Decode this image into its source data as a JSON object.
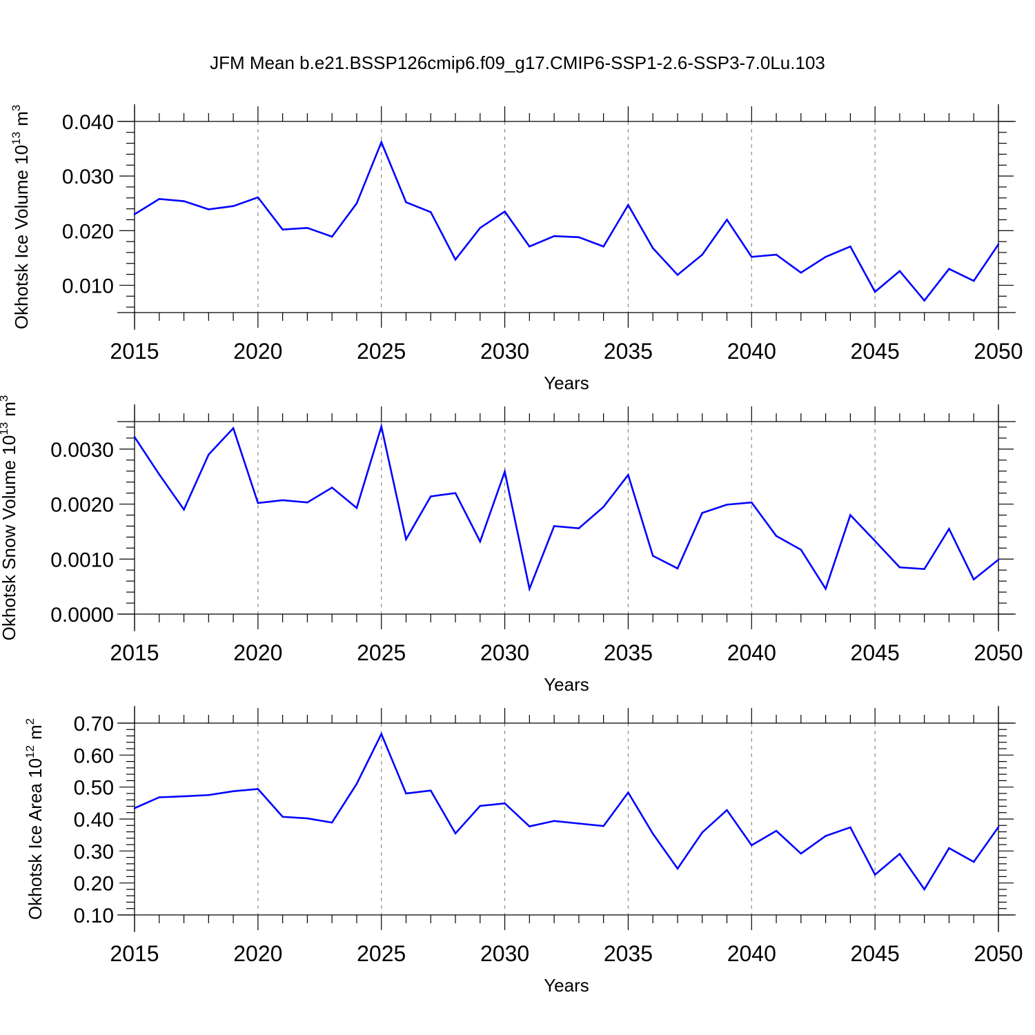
{
  "figure": {
    "title": "JFM Mean b.e21.BSSP126cmip6.f09_g17.CMIP6-SSP1-2.6-SSP3-7.0Lu.103",
    "line_color": "#0000ff",
    "grid_color": "#888888"
  },
  "chart_data": [
    {
      "type": "line",
      "title": "",
      "xlabel": "Years",
      "ylabel": "Okhotsk Ice Volume 10",
      "ylabel_exponent": "13",
      "ylabel_unit": "m",
      "ylabel_unit_exponent": "3",
      "xlim": [
        2015,
        2050
      ],
      "ylim": [
        0.005,
        0.04
      ],
      "xticks": [
        2015,
        2020,
        2025,
        2030,
        2035,
        2040,
        2045,
        2050
      ],
      "xtick_labels": [
        "2015",
        "2020",
        "2025",
        "2030",
        "2035",
        "2040",
        "2045",
        "2050"
      ],
      "yticks": [
        0.01,
        0.02,
        0.03,
        0.04
      ],
      "ytick_labels": [
        "0.010",
        "0.020",
        "0.030",
        "0.040"
      ],
      "grid": "vertical dashed at major x ticks",
      "x": [
        2015,
        2016,
        2017,
        2018,
        2019,
        2020,
        2021,
        2022,
        2023,
        2024,
        2025,
        2026,
        2027,
        2028,
        2029,
        2030,
        2031,
        2032,
        2033,
        2034,
        2035,
        2036,
        2037,
        2038,
        2039,
        2040,
        2041,
        2042,
        2043,
        2044,
        2045,
        2046,
        2047,
        2048,
        2049,
        2050
      ],
      "series": [
        {
          "values": [
            0.023,
            0.0258,
            0.0254,
            0.0239,
            0.0245,
            0.0261,
            0.0202,
            0.0205,
            0.0189,
            0.025,
            0.0362,
            0.0252,
            0.0234,
            0.0147,
            0.0205,
            0.0235,
            0.0171,
            0.019,
            0.0188,
            0.0171,
            0.0247,
            0.0168,
            0.0119,
            0.0156,
            0.022,
            0.0152,
            0.0156,
            0.0123,
            0.0152,
            0.0171,
            0.0088,
            0.0126,
            0.0072,
            0.013,
            0.0108,
            0.0175
          ]
        }
      ]
    },
    {
      "type": "line",
      "title": "",
      "xlabel": "Years",
      "ylabel": "Okhotsk Snow Volume 10",
      "ylabel_exponent": "13",
      "ylabel_unit": "m",
      "ylabel_unit_exponent": "3",
      "xlim": [
        2015,
        2050
      ],
      "ylim": [
        0.0,
        0.0035
      ],
      "xticks": [
        2015,
        2020,
        2025,
        2030,
        2035,
        2040,
        2045,
        2050
      ],
      "xtick_labels": [
        "2015",
        "2020",
        "2025",
        "2030",
        "2035",
        "2040",
        "2045",
        "2050"
      ],
      "yticks": [
        0.0,
        0.001,
        0.002,
        0.003
      ],
      "ytick_labels": [
        "0.0000",
        "0.0010",
        "0.0020",
        "0.0030"
      ],
      "grid": "vertical dashed at major x ticks",
      "x": [
        2015,
        2016,
        2017,
        2018,
        2019,
        2020,
        2021,
        2022,
        2023,
        2024,
        2025,
        2026,
        2027,
        2028,
        2029,
        2030,
        2031,
        2032,
        2033,
        2034,
        2035,
        2036,
        2037,
        2038,
        2039,
        2040,
        2041,
        2042,
        2043,
        2044,
        2045,
        2046,
        2047,
        2048,
        2049,
        2050
      ],
      "series": [
        {
          "values": [
            0.00322,
            0.00254,
            0.0019,
            0.0029,
            0.00338,
            0.00202,
            0.00207,
            0.00203,
            0.0023,
            0.00193,
            0.00341,
            0.00136,
            0.00214,
            0.0022,
            0.00132,
            0.00259,
            0.00046,
            0.0016,
            0.00156,
            0.00195,
            0.00253,
            0.00106,
            0.00083,
            0.00184,
            0.00199,
            0.00203,
            0.00142,
            0.00117,
            0.00046,
            0.0018,
            0.00133,
            0.00085,
            0.00082,
            0.00155,
            0.00063,
            0.00099
          ]
        }
      ]
    },
    {
      "type": "line",
      "title": "",
      "xlabel": "Years",
      "ylabel": "Okhotsk Ice Area 10",
      "ylabel_exponent": "12",
      "ylabel_unit": "m",
      "ylabel_unit_exponent": "2",
      "xlim": [
        2015,
        2050
      ],
      "ylim": [
        0.1,
        0.7
      ],
      "xticks": [
        2015,
        2020,
        2025,
        2030,
        2035,
        2040,
        2045,
        2050
      ],
      "xtick_labels": [
        "2015",
        "2020",
        "2025",
        "2030",
        "2035",
        "2040",
        "2045",
        "2050"
      ],
      "yticks": [
        0.1,
        0.2,
        0.3,
        0.4,
        0.5,
        0.6,
        0.7
      ],
      "ytick_labels": [
        "0.10",
        "0.20",
        "0.30",
        "0.40",
        "0.50",
        "0.60",
        "0.70"
      ],
      "grid": "vertical dashed at major x ticks",
      "x": [
        2015,
        2016,
        2017,
        2018,
        2019,
        2020,
        2021,
        2022,
        2023,
        2024,
        2025,
        2026,
        2027,
        2028,
        2029,
        2030,
        2031,
        2032,
        2033,
        2034,
        2035,
        2036,
        2037,
        2038,
        2039,
        2040,
        2041,
        2042,
        2043,
        2044,
        2045,
        2046,
        2047,
        2048,
        2049,
        2050
      ],
      "series": [
        {
          "values": [
            0.434,
            0.468,
            0.471,
            0.475,
            0.487,
            0.494,
            0.407,
            0.402,
            0.389,
            0.51,
            0.666,
            0.48,
            0.489,
            0.355,
            0.441,
            0.449,
            0.377,
            0.394,
            0.386,
            0.378,
            0.483,
            0.354,
            0.245,
            0.358,
            0.428,
            0.318,
            0.363,
            0.292,
            0.347,
            0.374,
            0.226,
            0.291,
            0.18,
            0.309,
            0.266,
            0.375
          ]
        }
      ]
    }
  ]
}
